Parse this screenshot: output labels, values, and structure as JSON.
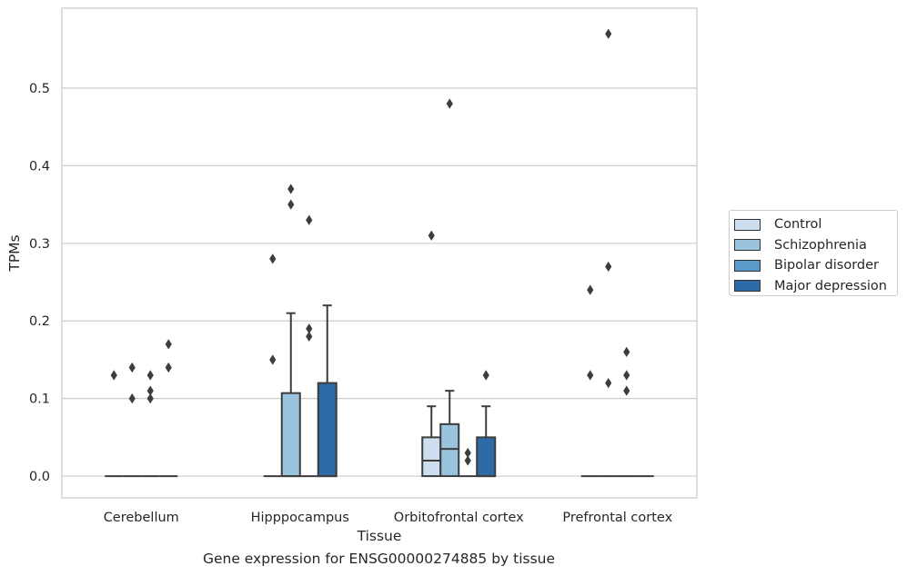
{
  "caption": "Gene expression for ENSG00000274885 by tissue",
  "chart_data": {
    "type": "box",
    "xlabel": "Tissue",
    "ylabel": "TPMs",
    "ylim": [
      -0.028,
      0.603
    ],
    "yticks": [
      0.0,
      0.1,
      0.2,
      0.3,
      0.4,
      0.5
    ],
    "ytick_labels": [
      "0.0",
      "0.1",
      "0.2",
      "0.3",
      "0.4",
      "0.5"
    ],
    "grid": "horizontal",
    "legend_position": "right",
    "categories": [
      "Cerebellum",
      "Hipppocampus",
      "Orbitofrontal cortex",
      "Prefrontal cortex"
    ],
    "series": [
      {
        "name": "Control",
        "color": "#cddeef",
        "boxes": [
          {
            "q1": 0,
            "median": 0,
            "q3": 0,
            "whislo": 0,
            "whishi": 0,
            "fliers": [
              0.13
            ]
          },
          {
            "q1": 0,
            "median": 0,
            "q3": 0,
            "whislo": 0,
            "whishi": 0,
            "fliers": [
              0.28,
              0.15
            ]
          },
          {
            "q1": 0,
            "median": 0.02,
            "q3": 0.05,
            "whislo": 0,
            "whishi": 0.09,
            "fliers": [
              0.31
            ]
          },
          {
            "q1": 0,
            "median": 0,
            "q3": 0,
            "whislo": 0,
            "whishi": 0,
            "fliers": [
              0.24,
              0.13
            ]
          }
        ]
      },
      {
        "name": "Schizophrenia",
        "color": "#9ac3dd",
        "boxes": [
          {
            "q1": 0,
            "median": 0,
            "q3": 0,
            "whislo": 0,
            "whishi": 0,
            "fliers": [
              0.14,
              0.1
            ]
          },
          {
            "q1": 0,
            "median": 0,
            "q3": 0.107,
            "whislo": 0,
            "whishi": 0.21,
            "fliers": [
              0.37,
              0.35
            ]
          },
          {
            "q1": 0,
            "median": 0.035,
            "q3": 0.067,
            "whislo": 0,
            "whishi": 0.11,
            "fliers": [
              0.48
            ]
          },
          {
            "q1": 0,
            "median": 0,
            "q3": 0,
            "whislo": 0,
            "whishi": 0,
            "fliers": [
              0.57,
              0.27,
              0.12
            ]
          }
        ]
      },
      {
        "name": "Bipolar disorder",
        "color": "#5a9ac8",
        "boxes": [
          {
            "q1": 0,
            "median": 0,
            "q3": 0,
            "whislo": 0,
            "whishi": 0,
            "fliers": [
              0.13,
              0.11,
              0.1
            ]
          },
          {
            "q1": 0,
            "median": 0,
            "q3": 0,
            "whislo": 0,
            "whishi": 0,
            "fliers": [
              0.33,
              0.19,
              0.18
            ]
          },
          {
            "q1": 0,
            "median": 0,
            "q3": 0,
            "whislo": 0,
            "whishi": 0,
            "fliers": [
              0.03,
              0.02
            ]
          },
          {
            "q1": 0,
            "median": 0,
            "q3": 0,
            "whislo": 0,
            "whishi": 0,
            "fliers": [
              0.16,
              0.13,
              0.11
            ]
          }
        ]
      },
      {
        "name": "Major depression",
        "color": "#2d6aa6",
        "boxes": [
          {
            "q1": 0,
            "median": 0,
            "q3": 0,
            "whislo": 0,
            "whishi": 0,
            "fliers": [
              0.17,
              0.14
            ]
          },
          {
            "q1": 0,
            "median": 0,
            "q3": 0.12,
            "whislo": 0,
            "whishi": 0.22,
            "fliers": []
          },
          {
            "q1": 0,
            "median": 0,
            "q3": 0.05,
            "whislo": 0,
            "whishi": 0.09,
            "fliers": [
              0.13
            ]
          },
          {
            "q1": 0,
            "median": 0,
            "q3": 0,
            "whislo": 0,
            "whishi": 0,
            "fliers": []
          }
        ]
      }
    ]
  }
}
